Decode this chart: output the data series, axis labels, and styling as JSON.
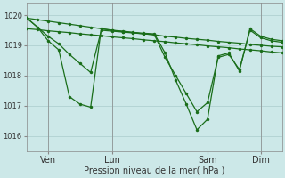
{
  "bg_color": "#cce8e8",
  "grid_color": "#aacccc",
  "line_color": "#1a6e1a",
  "xlabel": "Pression niveau de la mer( hPa )",
  "ylim": [
    1015.5,
    1020.4
  ],
  "xlim": [
    0,
    24
  ],
  "yticks": [
    1016,
    1017,
    1018,
    1019,
    1020
  ],
  "xtick_positions": [
    2,
    8,
    17,
    22
  ],
  "xtick_labels": [
    "Ven",
    "Lun",
    "Sam",
    "Dim"
  ],
  "s1_x": [
    0,
    1,
    2,
    3,
    4,
    5,
    6,
    7,
    8,
    9,
    10,
    11,
    12,
    13,
    14,
    15,
    16,
    17,
    18,
    19,
    20,
    21,
    22,
    23,
    24
  ],
  "s1_y": [
    1019.9,
    1019.85,
    1019.8,
    1019.75,
    1019.7,
    1019.65,
    1019.6,
    1019.55,
    1019.5,
    1019.45,
    1019.42,
    1019.38,
    1019.35,
    1019.3,
    1019.27,
    1019.23,
    1019.2,
    1019.17,
    1019.13,
    1019.1,
    1019.07,
    1019.03,
    1019.0,
    1018.97,
    1018.95
  ],
  "s2_x": [
    0,
    1,
    2,
    3,
    4,
    5,
    6,
    7,
    8,
    9,
    10,
    11,
    12,
    13,
    14,
    15,
    16,
    17,
    18,
    19,
    20,
    21,
    22,
    23,
    24
  ],
  "s2_y": [
    1019.55,
    1019.52,
    1019.48,
    1019.45,
    1019.42,
    1019.38,
    1019.35,
    1019.32,
    1019.28,
    1019.25,
    1019.22,
    1019.18,
    1019.15,
    1019.12,
    1019.08,
    1019.05,
    1019.02,
    1018.98,
    1018.95,
    1018.92,
    1018.88,
    1018.85,
    1018.82,
    1018.78,
    1018.75
  ],
  "s3_x": [
    0,
    1,
    2,
    3,
    4,
    5,
    6,
    7,
    8,
    9,
    10,
    11,
    12,
    13,
    14,
    15,
    16,
    17,
    18,
    19,
    20,
    21,
    22,
    23,
    24
  ],
  "s3_y": [
    1019.9,
    1019.6,
    1019.15,
    1018.85,
    1017.3,
    1017.05,
    1016.95,
    1019.55,
    1019.5,
    1019.47,
    1019.43,
    1019.4,
    1019.38,
    1018.75,
    1017.85,
    1017.05,
    1016.2,
    1016.55,
    1018.65,
    1018.75,
    1018.15,
    1019.55,
    1019.3,
    1019.2,
    1019.15
  ],
  "s4_x": [
    0,
    1,
    2,
    3,
    4,
    5,
    6,
    7,
    8,
    9,
    10,
    11,
    12,
    13,
    14,
    15,
    16,
    17,
    18,
    19,
    20,
    21,
    22,
    23,
    24
  ],
  "s4_y": [
    1019.9,
    1019.6,
    1019.3,
    1019.05,
    1018.7,
    1018.4,
    1018.1,
    1019.5,
    1019.47,
    1019.44,
    1019.41,
    1019.38,
    1019.35,
    1018.6,
    1018.0,
    1017.4,
    1016.8,
    1017.1,
    1018.6,
    1018.7,
    1018.2,
    1019.5,
    1019.25,
    1019.15,
    1019.1
  ]
}
